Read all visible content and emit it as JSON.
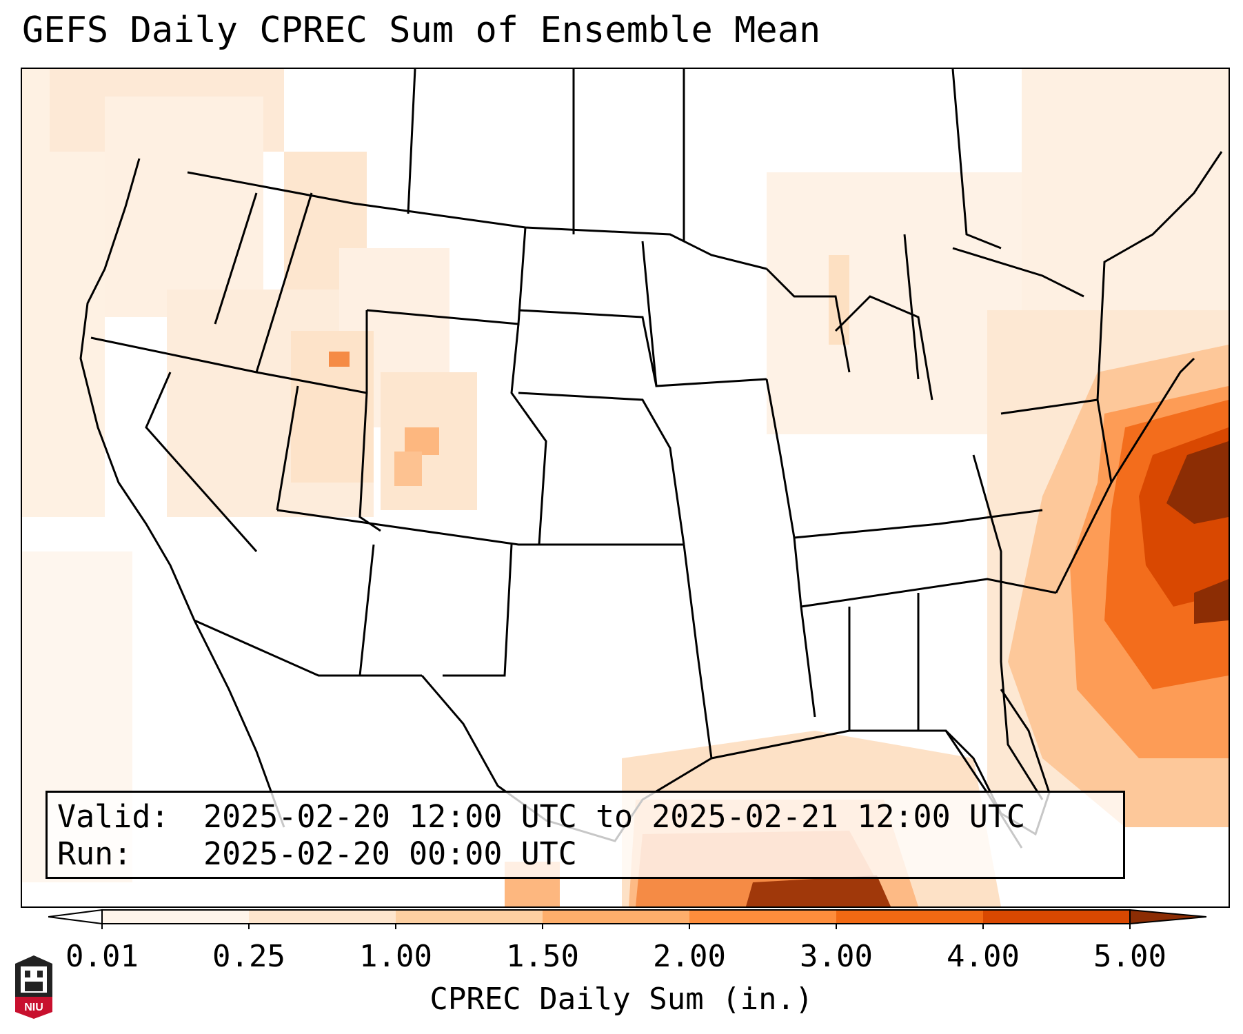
{
  "title": "GEFS Daily CPREC Sum of Ensemble Mean",
  "info": {
    "valid_label": "Valid:",
    "valid_value": "2025-02-20 12:00 UTC to 2025-02-21 12:00 UTC",
    "run_label": "Run:",
    "run_value": "2025-02-20 00:00 UTC"
  },
  "colorbar": {
    "label": "CPREC Daily Sum (in.)",
    "ticks": [
      "0.01",
      "0.25",
      "1.00",
      "1.50",
      "2.00",
      "3.00",
      "4.00",
      "5.00"
    ],
    "colors": [
      "#fff5eb",
      "#fee6ce",
      "#fdd0a2",
      "#fdae6b",
      "#fd8d3c",
      "#f16913",
      "#d94801",
      "#8c2d04"
    ]
  },
  "logo": {
    "text": "NIU"
  }
}
